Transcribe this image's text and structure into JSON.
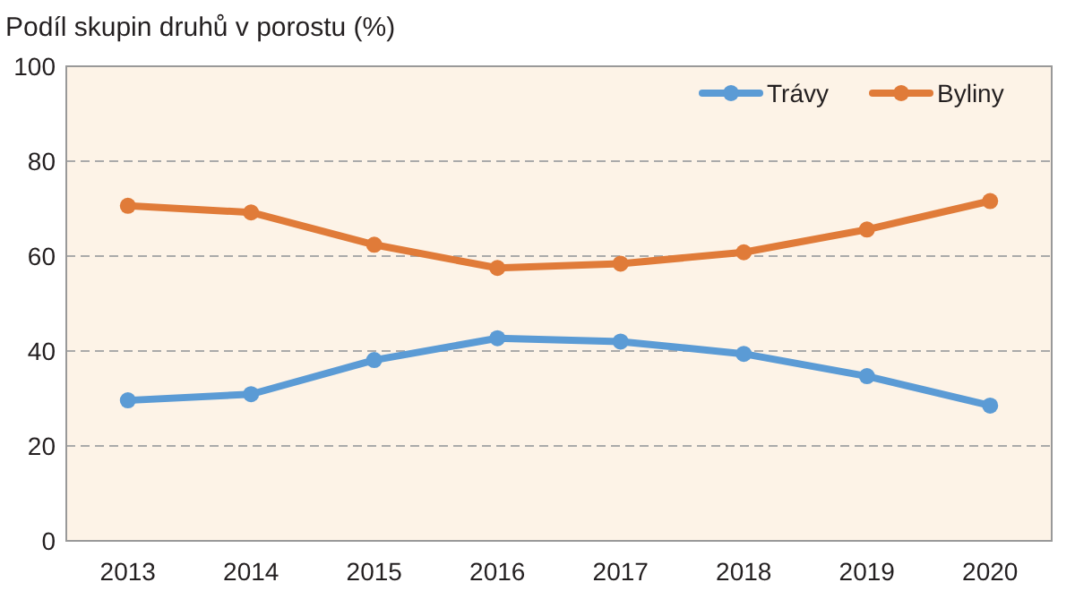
{
  "chart_data": {
    "type": "line",
    "title": "Podíl skupin druhů v porostu (%)",
    "categories": [
      "2013",
      "2014",
      "2015",
      "2016",
      "2017",
      "2018",
      "2019",
      "2020"
    ],
    "series": [
      {
        "name": "Trávy",
        "color": "#5b9bd5",
        "values": [
          29.6,
          30.9,
          38.1,
          42.7,
          42.0,
          39.4,
          34.7,
          28.5
        ]
      },
      {
        "name": "Byliny",
        "color": "#e07b39",
        "values": [
          70.6,
          69.2,
          62.4,
          57.5,
          58.4,
          60.8,
          65.6,
          71.6
        ]
      }
    ],
    "ylim": [
      0,
      100
    ],
    "yticks": [
      0,
      20,
      40,
      60,
      80,
      100
    ],
    "grid": "y",
    "legend": "top right",
    "marker": "circle",
    "line_style": "solid"
  }
}
